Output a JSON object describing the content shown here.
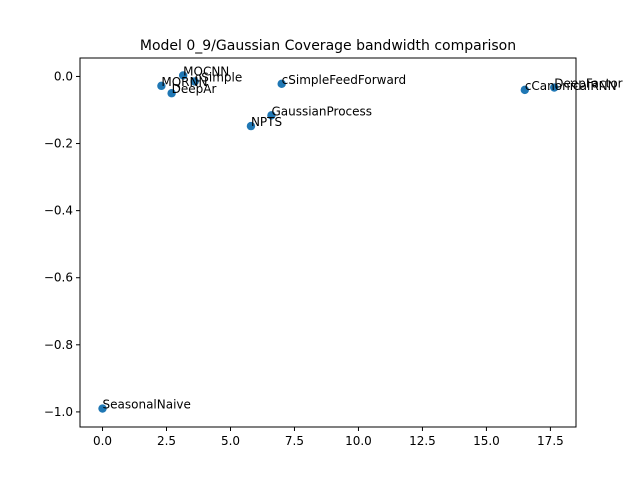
{
  "chart_data": {
    "type": "scatter",
    "title": "Model 0_9/Gaussian Coverage bandwidth comparison",
    "xlabel": "",
    "ylabel": "",
    "xlim": [
      -0.88,
      18.5
    ],
    "ylim": [
      -1.045,
      0.055
    ],
    "grid": false,
    "point_color": "#1f77b4",
    "x_ticks": [
      {
        "value": 0.0,
        "label": "0.0"
      },
      {
        "value": 2.5,
        "label": "2.5"
      },
      {
        "value": 5.0,
        "label": "5.0"
      },
      {
        "value": 7.5,
        "label": "7.5"
      },
      {
        "value": 10.0,
        "label": "10.0"
      },
      {
        "value": 12.5,
        "label": "12.5"
      },
      {
        "value": 15.0,
        "label": "15.0"
      },
      {
        "value": 17.5,
        "label": "17.5"
      }
    ],
    "y_ticks": [
      {
        "value": 0.0,
        "label": "0.0"
      },
      {
        "value": -0.2,
        "label": "−0.2"
      },
      {
        "value": -0.4,
        "label": "−0.4"
      },
      {
        "value": -0.6,
        "label": "−0.6"
      },
      {
        "value": -0.8,
        "label": "−0.8"
      },
      {
        "value": -1.0,
        "label": "−1.0"
      }
    ],
    "points": [
      {
        "label": "MQCNN",
        "x": 3.15,
        "y": 0.003
      },
      {
        "label": "cSimple",
        "x": 3.6,
        "y": -0.015
      },
      {
        "label": "MQRNN",
        "x": 2.3,
        "y": -0.028
      },
      {
        "label": "DeepAr",
        "x": 2.7,
        "y": -0.05
      },
      {
        "label": "cSimpleFeedForward",
        "x": 7.0,
        "y": -0.022
      },
      {
        "label": "GaussianProcess",
        "x": 6.6,
        "y": -0.116
      },
      {
        "label": "NPTS",
        "x": 5.8,
        "y": -0.148
      },
      {
        "label": "DeepFactor",
        "x": 17.65,
        "y": -0.033
      },
      {
        "label": "cCanonicalRNN",
        "x": 16.5,
        "y": -0.04
      },
      {
        "label": "SeasonalNaive",
        "x": 0.0,
        "y": -0.99
      }
    ]
  }
}
